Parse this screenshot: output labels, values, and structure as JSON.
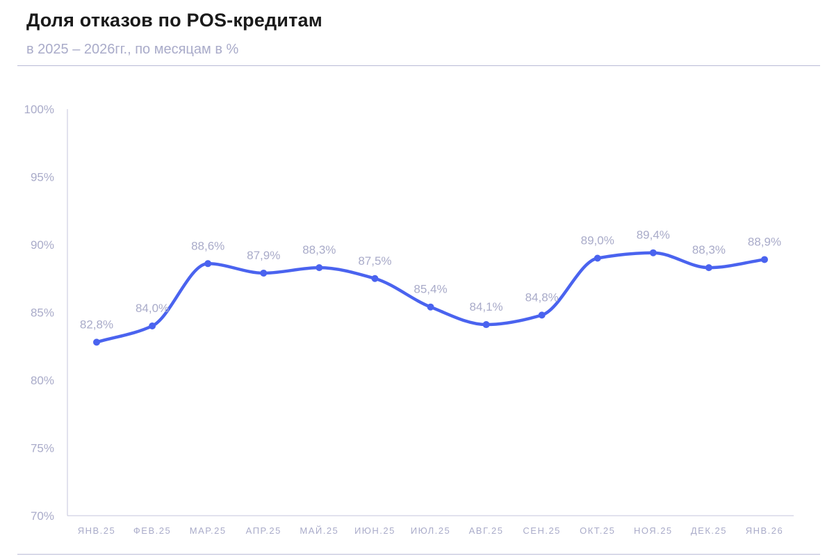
{
  "chart_data": {
    "type": "line",
    "title": "Доля отказов по POS-кредитам",
    "subtitle": "в 2025 – 2026гг., по месяцам в %",
    "categories": [
      "ЯНВ.25",
      "ФЕВ.25",
      "МАР.25",
      "АПР.25",
      "МАЙ.25",
      "ИЮН.25",
      "ИЮЛ.25",
      "АВГ.25",
      "СЕН.25",
      "ОКТ.25",
      "НОЯ.25",
      "ДЕК.25",
      "ЯНВ.26"
    ],
    "series": [
      {
        "values": [
          82.8,
          84.0,
          88.6,
          87.9,
          88.3,
          87.5,
          85.4,
          84.1,
          84.8,
          89.0,
          89.4,
          88.3,
          88.9
        ],
        "labels": [
          "82,8%",
          "84,0%",
          "88,6%",
          "87,9%",
          "88,3%",
          "87,5%",
          "85,4%",
          "84,1%",
          "84,8%",
          "89,0%",
          "89,4%",
          "88,3%",
          "88,9%"
        ],
        "color": "#4a63ef"
      }
    ],
    "yticks": [
      70,
      75,
      80,
      85,
      90,
      95,
      100
    ],
    "ytick_labels": [
      "70%",
      "75%",
      "80%",
      "85%",
      "90%",
      "95%",
      "100%"
    ],
    "ylim": [
      70,
      100
    ],
    "xlabel": "",
    "ylabel": "",
    "grid": false,
    "smooth": true
  },
  "colors": {
    "line": "#4a63ef",
    "axis": "#c4c6dc",
    "text_muted": "#a9abc9",
    "title": "#1a1a1a"
  }
}
